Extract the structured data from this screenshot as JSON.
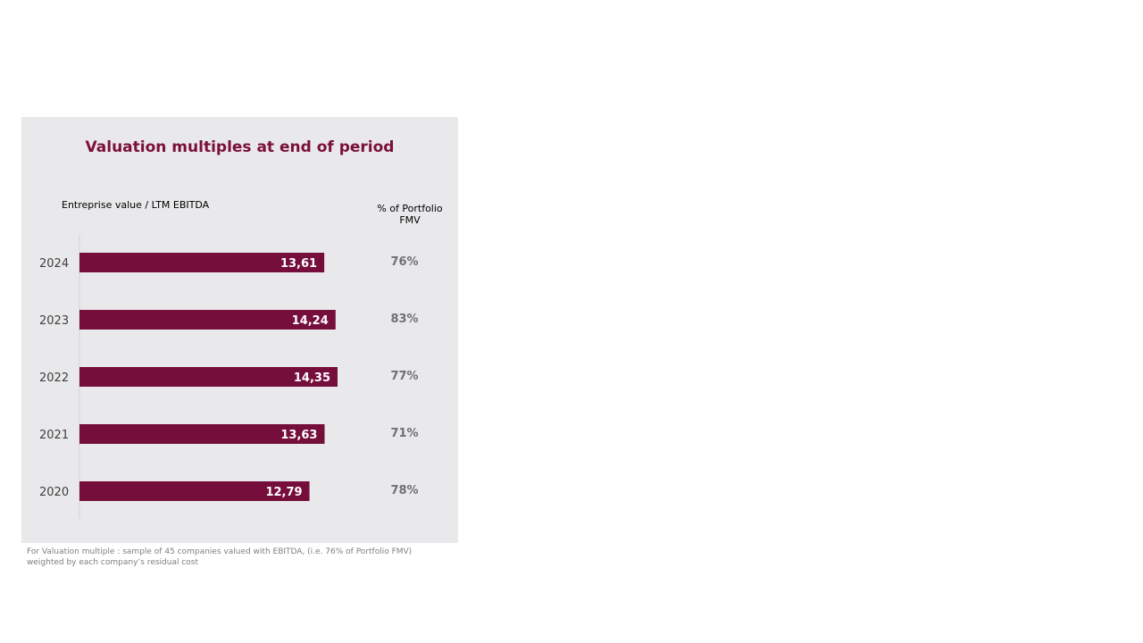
{
  "chart_data": {
    "type": "bar",
    "orientation": "horizontal",
    "title": "Valuation multiples at end of period",
    "xlabel": "Entreprise value / LTM EBITDA",
    "ylabel": "",
    "categories": [
      "2024",
      "2023",
      "2022",
      "2021",
      "2020"
    ],
    "values": [
      13.61,
      14.24,
      14.35,
      13.63,
      12.79
    ],
    "value_labels": [
      "13,61",
      "14,24",
      "14,35",
      "13,63",
      "12,79"
    ],
    "secondary_column": {
      "header": "% of Portfolio FMV",
      "values": [
        "76%",
        "83%",
        "77%",
        "71%",
        "78%"
      ]
    },
    "grid": false,
    "legend": "none",
    "colors": {
      "bar": "#760e3c",
      "title": "#7a0f3a",
      "panel": "#e9e8ea",
      "pct_text": "#6f6f74"
    }
  },
  "footnote": "For Valuation multiple : sample of 45 companies valued with EBITDA, (i.e. 76% of Portfolio FMV) weighted by each company’s residual cost"
}
